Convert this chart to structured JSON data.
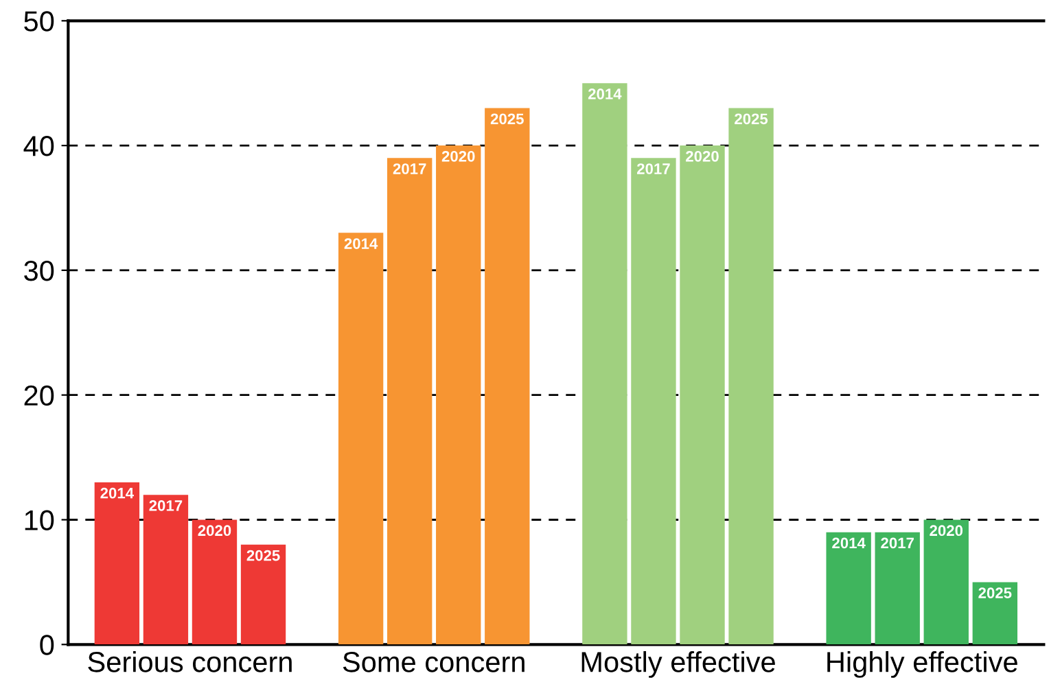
{
  "chart_data": {
    "type": "bar",
    "categories": [
      "Serious concern",
      "Some concern",
      "Mostly effective",
      "Highly effective"
    ],
    "series": [
      {
        "name": "2014",
        "colors": [
          "#ee3935",
          "#f79532",
          "#a0d07f",
          "#3fb55d"
        ],
        "values": [
          13,
          33,
          45,
          9
        ]
      },
      {
        "name": "2017",
        "colors": [
          "#ee3935",
          "#f79532",
          "#a0d07f",
          "#3fb55d"
        ],
        "values": [
          12,
          39,
          39,
          9
        ]
      },
      {
        "name": "2020",
        "colors": [
          "#ee3935",
          "#f79532",
          "#a0d07f",
          "#3fb55d"
        ],
        "values": [
          10,
          40,
          40,
          10
        ]
      },
      {
        "name": "2025",
        "colors": [
          "#ee3935",
          "#f79532",
          "#a0d07f",
          "#3fb55d"
        ],
        "values": [
          8,
          43,
          43,
          5
        ]
      }
    ],
    "ylim": [
      0,
      50
    ],
    "yticks": [
      0,
      10,
      20,
      30,
      40,
      50
    ],
    "grid": "y",
    "line_style": "dashed",
    "legend": false
  }
}
